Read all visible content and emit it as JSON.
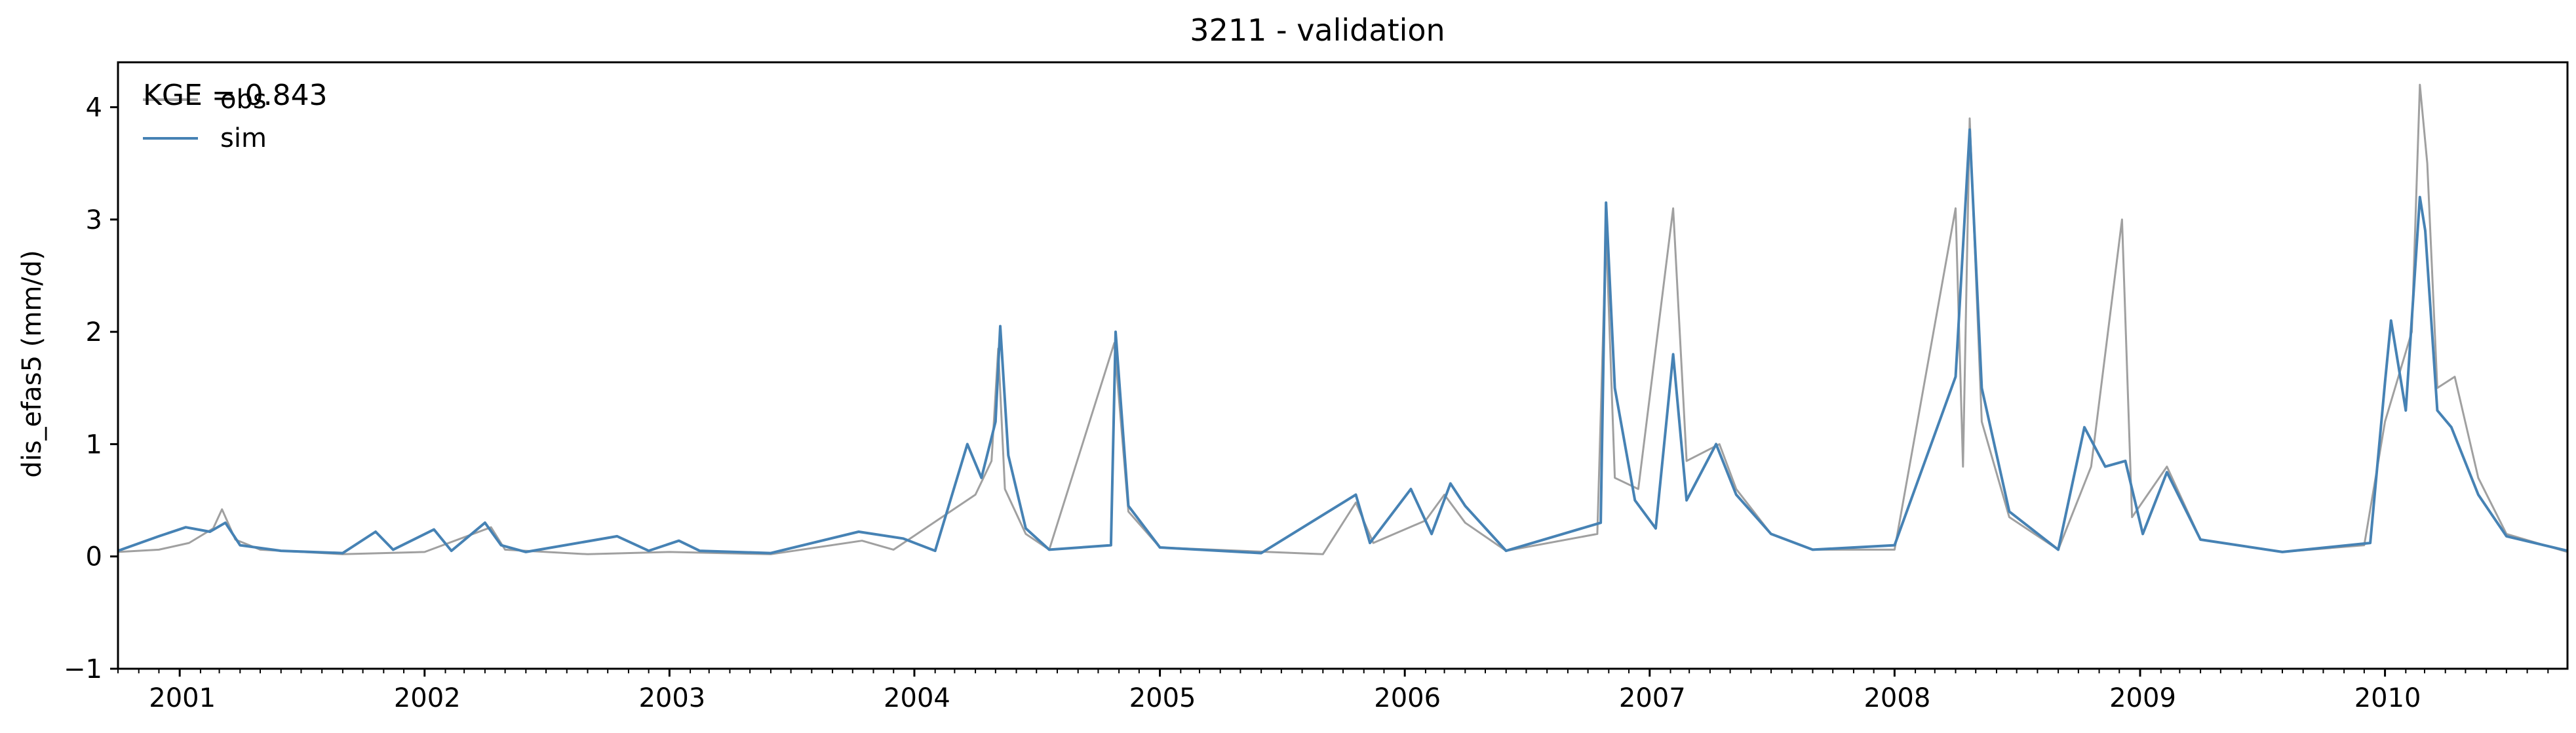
{
  "chart_data": {
    "type": "line",
    "title": "3211 - validation",
    "xlabel": "",
    "ylabel": "dis_efas5 (mm/d)",
    "xlim": [
      "2000-10-01",
      "2010-09-30"
    ],
    "ylim": [
      -1,
      4.4
    ],
    "yticks": [
      -1,
      0,
      1,
      2,
      3,
      4
    ],
    "xtick_labels": [
      "2001",
      "2002",
      "2003",
      "2004",
      "2005",
      "2006",
      "2007",
      "2008",
      "2009",
      "2010"
    ],
    "grid": false,
    "legend": {
      "position": "top-left",
      "entries": [
        "obs",
        "sim"
      ]
    },
    "annotation": "KGE = 0.843",
    "series": [
      {
        "name": "obs",
        "color": "#a0a0a0",
        "points": [
          [
            "2000-10-01",
            0.04
          ],
          [
            "2000-12-01",
            0.06
          ],
          [
            "2001-01-15",
            0.12
          ],
          [
            "2001-02-20",
            0.25
          ],
          [
            "2001-03-05",
            0.42
          ],
          [
            "2001-03-25",
            0.15
          ],
          [
            "2001-05-01",
            0.06
          ],
          [
            "2001-09-01",
            0.02
          ],
          [
            "2002-01-01",
            0.04
          ],
          [
            "2002-04-10",
            0.26
          ],
          [
            "2002-05-01",
            0.06
          ],
          [
            "2002-09-01",
            0.02
          ],
          [
            "2003-01-01",
            0.04
          ],
          [
            "2003-06-01",
            0.02
          ],
          [
            "2003-10-15",
            0.14
          ],
          [
            "2003-12-01",
            0.06
          ],
          [
            "2004-04-01",
            0.55
          ],
          [
            "2004-04-25",
            0.85
          ],
          [
            "2004-05-05",
            1.85
          ],
          [
            "2004-05-15",
            0.6
          ],
          [
            "2004-06-15",
            0.2
          ],
          [
            "2004-07-20",
            0.06
          ],
          [
            "2004-10-25",
            1.9
          ],
          [
            "2004-11-15",
            0.4
          ],
          [
            "2005-01-01",
            0.08
          ],
          [
            "2005-09-01",
            0.02
          ],
          [
            "2005-10-20",
            0.48
          ],
          [
            "2005-11-15",
            0.12
          ],
          [
            "2006-02-01",
            0.32
          ],
          [
            "2006-03-01",
            0.55
          ],
          [
            "2006-04-01",
            0.3
          ],
          [
            "2006-06-01",
            0.05
          ],
          [
            "2006-10-15",
            0.2
          ],
          [
            "2006-10-28",
            2.9
          ],
          [
            "2006-11-10",
            0.7
          ],
          [
            "2006-12-15",
            0.6
          ],
          [
            "2007-02-05",
            3.1
          ],
          [
            "2007-02-25",
            0.85
          ],
          [
            "2007-04-15",
            1.0
          ],
          [
            "2007-05-10",
            0.6
          ],
          [
            "2007-07-01",
            0.2
          ],
          [
            "2007-09-01",
            0.06
          ],
          [
            "2008-01-01",
            0.06
          ],
          [
            "2008-04-01",
            3.1
          ],
          [
            "2008-04-12",
            0.8
          ],
          [
            "2008-04-22",
            3.9
          ],
          [
            "2008-05-10",
            1.2
          ],
          [
            "2008-06-20",
            0.35
          ],
          [
            "2008-09-01",
            0.06
          ],
          [
            "2008-10-20",
            0.8
          ],
          [
            "2008-12-05",
            3.0
          ],
          [
            "2008-12-20",
            0.35
          ],
          [
            "2009-02-10",
            0.8
          ],
          [
            "2009-04-01",
            0.15
          ],
          [
            "2009-08-01",
            0.04
          ],
          [
            "2009-12-01",
            0.1
          ],
          [
            "2010-01-01",
            1.2
          ],
          [
            "2010-02-10",
            2.0
          ],
          [
            "2010-02-22",
            4.2
          ],
          [
            "2010-03-05",
            3.5
          ],
          [
            "2010-03-20",
            1.5
          ],
          [
            "2010-04-15",
            1.6
          ],
          [
            "2010-05-20",
            0.7
          ],
          [
            "2010-07-01",
            0.2
          ],
          [
            "2010-09-30",
            0.04
          ]
        ]
      },
      {
        "name": "sim",
        "color": "#4682b4",
        "points": [
          [
            "2000-10-01",
            0.05
          ],
          [
            "2000-12-01",
            0.18
          ],
          [
            "2001-01-10",
            0.26
          ],
          [
            "2001-02-15",
            0.22
          ],
          [
            "2001-03-10",
            0.3
          ],
          [
            "2001-04-01",
            0.1
          ],
          [
            "2001-06-01",
            0.05
          ],
          [
            "2001-09-01",
            0.03
          ],
          [
            "2001-10-20",
            0.22
          ],
          [
            "2001-11-15",
            0.06
          ],
          [
            "2002-01-15",
            0.24
          ],
          [
            "2002-02-10",
            0.05
          ],
          [
            "2002-04-01",
            0.3
          ],
          [
            "2002-04-25",
            0.1
          ],
          [
            "2002-06-01",
            0.04
          ],
          [
            "2002-10-15",
            0.18
          ],
          [
            "2002-12-01",
            0.05
          ],
          [
            "2003-01-15",
            0.14
          ],
          [
            "2003-02-15",
            0.05
          ],
          [
            "2003-06-01",
            0.03
          ],
          [
            "2003-10-10",
            0.22
          ],
          [
            "2003-12-15",
            0.16
          ],
          [
            "2004-02-01",
            0.05
          ],
          [
            "2004-03-20",
            1.0
          ],
          [
            "2004-04-10",
            0.7
          ],
          [
            "2004-05-01",
            1.2
          ],
          [
            "2004-05-08",
            2.05
          ],
          [
            "2004-05-20",
            0.9
          ],
          [
            "2004-06-15",
            0.25
          ],
          [
            "2004-07-20",
            0.06
          ],
          [
            "2004-10-20",
            0.1
          ],
          [
            "2004-10-27",
            2.0
          ],
          [
            "2004-11-15",
            0.45
          ],
          [
            "2005-01-01",
            0.08
          ],
          [
            "2005-06-01",
            0.03
          ],
          [
            "2005-10-20",
            0.55
          ],
          [
            "2005-11-10",
            0.12
          ],
          [
            "2006-01-10",
            0.6
          ],
          [
            "2006-02-10",
            0.2
          ],
          [
            "2006-03-10",
            0.65
          ],
          [
            "2006-04-01",
            0.45
          ],
          [
            "2006-06-01",
            0.05
          ],
          [
            "2006-10-20",
            0.3
          ],
          [
            "2006-10-28",
            3.15
          ],
          [
            "2006-11-10",
            1.5
          ],
          [
            "2006-12-10",
            0.5
          ],
          [
            "2007-01-10",
            0.25
          ],
          [
            "2007-02-05",
            1.8
          ],
          [
            "2007-02-25",
            0.5
          ],
          [
            "2007-04-10",
            1.0
          ],
          [
            "2007-05-10",
            0.55
          ],
          [
            "2007-07-01",
            0.2
          ],
          [
            "2007-09-01",
            0.06
          ],
          [
            "2008-01-01",
            0.1
          ],
          [
            "2008-04-01",
            1.6
          ],
          [
            "2008-04-22",
            3.8
          ],
          [
            "2008-05-10",
            1.5
          ],
          [
            "2008-06-20",
            0.4
          ],
          [
            "2008-09-01",
            0.06
          ],
          [
            "2008-10-10",
            1.15
          ],
          [
            "2008-11-10",
            0.8
          ],
          [
            "2008-12-10",
            0.85
          ],
          [
            "2009-01-05",
            0.2
          ],
          [
            "2009-02-10",
            0.75
          ],
          [
            "2009-04-01",
            0.15
          ],
          [
            "2009-08-01",
            0.04
          ],
          [
            "2009-12-10",
            0.12
          ],
          [
            "2010-01-01",
            1.55
          ],
          [
            "2010-01-10",
            2.1
          ],
          [
            "2010-02-01",
            1.3
          ],
          [
            "2010-02-22",
            3.2
          ],
          [
            "2010-03-02",
            2.9
          ],
          [
            "2010-03-20",
            1.3
          ],
          [
            "2010-04-10",
            1.15
          ],
          [
            "2010-05-20",
            0.55
          ],
          [
            "2010-07-01",
            0.18
          ],
          [
            "2010-09-30",
            0.05
          ]
        ]
      }
    ]
  }
}
